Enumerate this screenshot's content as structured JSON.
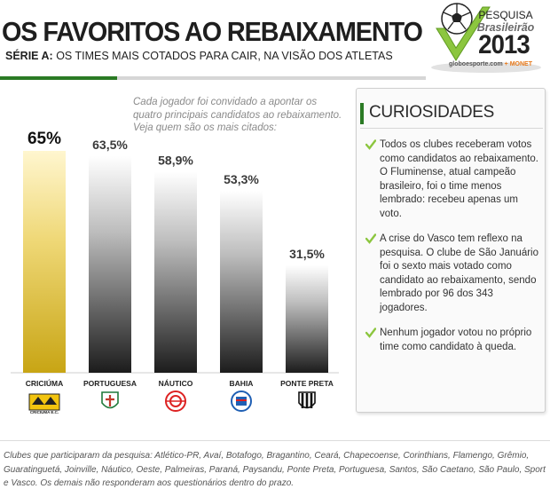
{
  "header": {
    "title": "OS FAVORITOS AO REBAIXAMENTO",
    "subtitle_bold": "SÉRIE A:",
    "subtitle_rest": "OS TIMES MAIS COTADOS PARA CAIR, NA VISÃO DOS ATLETAS"
  },
  "logo": {
    "line1": "PESQUISA",
    "line2": "Brasileirão",
    "year": "2013",
    "site_main": "globoesporte.com",
    "site_extra": "+ MONET",
    "icon": "soccer-ball-checkmark"
  },
  "note": "Cada jogador foi convidado a apontar os quatro principais candidatos ao rebaixamento. Veja quem são os mais citados:",
  "chart_data": {
    "type": "bar",
    "categories": [
      "CRICIÚMA",
      "PORTUGUESA",
      "NÁUTICO",
      "BAHIA",
      "PONTE PRETA"
    ],
    "values": [
      65,
      63.5,
      58.9,
      53.3,
      31.5
    ],
    "value_labels": [
      "65%",
      "63,5%",
      "58,9%",
      "53,3%",
      "31,5%"
    ],
    "ylim": [
      0,
      65
    ],
    "highlight_index": 0,
    "colors": {
      "highlight": "#d9b21c",
      "bars": "#2a2a2a"
    },
    "grid": false,
    "crest_labels": [
      "CRICIÚMA E.C."
    ],
    "crests": [
      "criciuma-crest",
      "portuguesa-crest",
      "nautico-crest",
      "bahia-crest",
      "ponte-preta-crest"
    ]
  },
  "curiosities": {
    "title": "CURIOSIDADES",
    "items": [
      "Todos os clubes receberam votos como candidatos ao rebaixamento. O Fluminense, atual campeão brasileiro, foi o time menos lembrado: recebeu apenas um voto.",
      "A crise do Vasco tem reflexo na pesquisa. O clube de São Januário foi o sexto mais votado como candidato ao rebaixamento, sendo lembrado por 96 dos 343 jogadores.",
      "Nenhum jogador votou no próprio time como candidato à queda."
    ],
    "accent": "#2a7a24",
    "check_color": "#8cc63f"
  },
  "footer": "Clubes que participaram da pesquisa: Atlético-PR, Avaí, Botafogo, Bragantino, Ceará, Chapecoense, Corinthians, Flamengo, Grêmio, Guaratinguetá, Joinville, Náutico, Oeste, Palmeiras, Paraná, Paysandu, Ponte Preta, Portuguesa, Santos, São Caetano, São Paulo, Sport e Vasco. Os demais não responderam aos questionários dentro do prazo."
}
